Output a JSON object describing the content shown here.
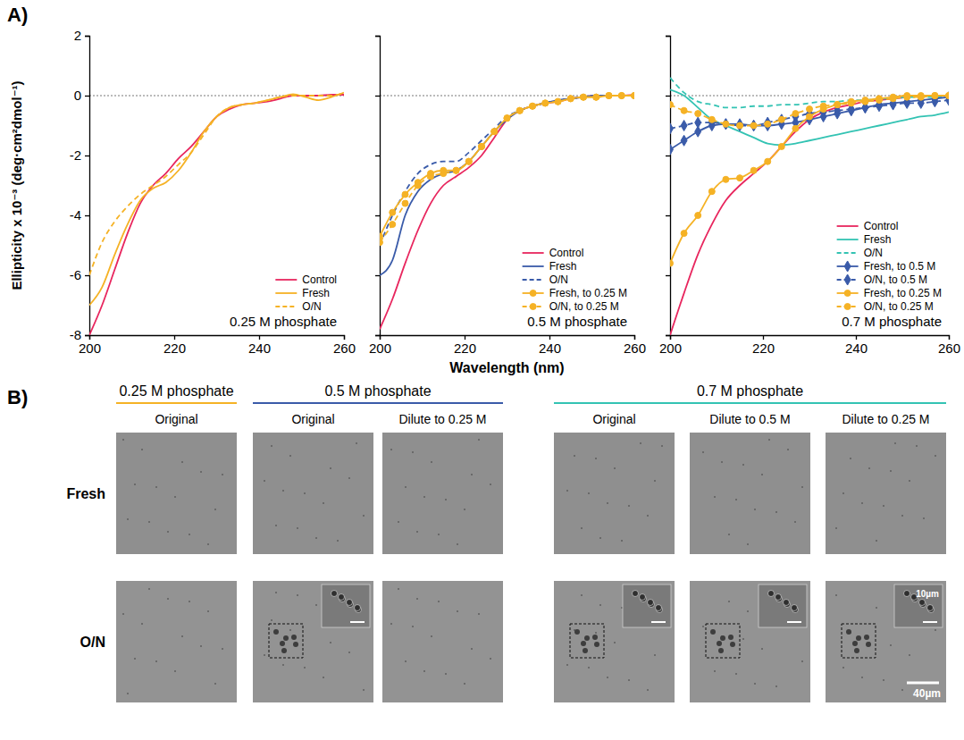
{
  "panel_a": {
    "label": "A)"
  },
  "chart_data": [
    {
      "type": "line",
      "ylabel": "Ellipticity x 10⁻³ (deg·cm²dmol⁻¹)",
      "annotation": "0.25 M phosphate",
      "x": [
        200,
        203,
        206,
        209,
        212,
        215,
        218,
        221,
        224,
        227,
        230,
        233,
        236,
        239,
        242,
        245,
        248,
        251,
        254,
        257,
        260
      ],
      "xlim": [
        200,
        260
      ],
      "xticks": [
        200,
        220,
        240,
        260
      ],
      "ylim": [
        -8,
        2
      ],
      "yticks": [
        -8,
        -6,
        -4,
        -2,
        0,
        2
      ],
      "hline": 0,
      "legend": "lower right",
      "series": [
        {
          "name": "Control",
          "color": "#e8265e",
          "line_style": "solid",
          "values": [
            -8.0,
            -7.0,
            -5.8,
            -4.6,
            -3.6,
            -3.0,
            -2.6,
            -2.1,
            -1.7,
            -1.2,
            -0.7,
            -0.45,
            -0.3,
            -0.25,
            -0.2,
            -0.1,
            0.0,
            0.0,
            0.0,
            0.03,
            0.03
          ]
        },
        {
          "name": "Fresh",
          "color": "#f5b225",
          "line_style": "solid",
          "values": [
            -7.0,
            -6.4,
            -5.3,
            -4.3,
            -3.5,
            -3.1,
            -2.9,
            -2.5,
            -1.9,
            -1.2,
            -0.7,
            -0.4,
            -0.3,
            -0.25,
            -0.15,
            -0.05,
            0.05,
            -0.05,
            -0.15,
            -0.05,
            0.1
          ]
        },
        {
          "name": "O/N",
          "color": "#f5b225",
          "line_style": "dashed",
          "values": [
            -6.0,
            -4.9,
            -4.2,
            -3.7,
            -3.3,
            -3.0,
            -2.7,
            -2.3,
            -1.9,
            -1.3,
            -0.7,
            -0.4,
            -0.3,
            -0.25,
            -0.15,
            -0.05,
            0.0,
            0.0,
            0.0,
            0.0,
            0.1
          ]
        }
      ]
    },
    {
      "type": "line",
      "xlabel": "Wavelength (nm)",
      "annotation": "0.5 M phosphate",
      "x": [
        200,
        203,
        206,
        209,
        212,
        215,
        218,
        221,
        224,
        227,
        230,
        233,
        236,
        239,
        242,
        245,
        248,
        251,
        254,
        257,
        260
      ],
      "xlim": [
        200,
        260
      ],
      "xticks": [
        200,
        220,
        240,
        260
      ],
      "ylim": [
        -8,
        2
      ],
      "yticks": [
        -8,
        -6,
        -4,
        -2,
        0,
        2
      ],
      "tick_labels": "x",
      "hline": 0,
      "legend": "lower right",
      "series": [
        {
          "name": "Control",
          "color": "#e8265e",
          "line_style": "solid",
          "values": [
            -7.8,
            -6.8,
            -5.6,
            -4.5,
            -3.6,
            -3.0,
            -2.7,
            -2.4,
            -2.0,
            -1.4,
            -0.8,
            -0.5,
            -0.35,
            -0.25,
            -0.2,
            -0.1,
            -0.05,
            0.0,
            0.0,
            0.0,
            0.03
          ]
        },
        {
          "name": "Fresh",
          "color": "#3a5ba9",
          "line_style": "solid",
          "values": [
            -6.0,
            -5.5,
            -4.0,
            -3.2,
            -2.8,
            -2.6,
            -2.5,
            -2.2,
            -1.7,
            -1.2,
            -0.8,
            -0.5,
            -0.35,
            -0.25,
            -0.15,
            -0.1,
            -0.05,
            0.0,
            0.0,
            0.0,
            0.0
          ]
        },
        {
          "name": "O/N",
          "color": "#3a5ba9",
          "line_style": "dashed",
          "values": [
            -5.0,
            -4.0,
            -3.2,
            -2.6,
            -2.3,
            -2.2,
            -2.2,
            -1.9,
            -1.5,
            -1.1,
            -0.7,
            -0.5,
            -0.35,
            -0.25,
            -0.15,
            -0.1,
            -0.05,
            0.0,
            0.0,
            0.0,
            0.0
          ]
        },
        {
          "name": "Fresh, to 0.25 M",
          "color": "#f5b225",
          "line_style": "solid",
          "marker": "circle",
          "values": [
            -4.7,
            -3.9,
            -3.3,
            -2.9,
            -2.6,
            -2.5,
            -2.5,
            -2.2,
            -1.7,
            -1.2,
            -0.75,
            -0.5,
            -0.35,
            -0.25,
            -0.2,
            -0.1,
            -0.05,
            -0.05,
            0.0,
            0.0,
            0.0
          ]
        },
        {
          "name": "O/N, to 0.25 M",
          "color": "#f5b225",
          "line_style": "dashed",
          "marker": "circle",
          "values": [
            -4.9,
            -4.3,
            -3.6,
            -3.0,
            -2.7,
            -2.6,
            -2.5,
            -2.2,
            -1.7,
            -1.2,
            -0.75,
            -0.5,
            -0.35,
            -0.25,
            -0.2,
            -0.1,
            -0.05,
            -0.05,
            0.0,
            0.0,
            0.0
          ]
        }
      ]
    },
    {
      "type": "line",
      "annotation": "0.7 M phosphate",
      "x": [
        200,
        203,
        206,
        209,
        212,
        215,
        218,
        221,
        224,
        227,
        230,
        233,
        236,
        239,
        242,
        245,
        248,
        251,
        254,
        257,
        260
      ],
      "xlim": [
        200,
        260
      ],
      "xticks": [
        200,
        220,
        240,
        260
      ],
      "ylim": [
        -8,
        2
      ],
      "yticks": [
        -8,
        -6,
        -4,
        -2,
        0,
        2
      ],
      "tick_labels": "x",
      "hline": 0,
      "legend": "lower right",
      "series": [
        {
          "name": "Control",
          "color": "#e8265e",
          "line_style": "solid",
          "values": [
            -8.0,
            -6.6,
            -5.3,
            -4.3,
            -3.5,
            -3.0,
            -2.6,
            -2.2,
            -1.7,
            -1.2,
            -0.8,
            -0.55,
            -0.4,
            -0.3,
            -0.2,
            -0.15,
            -0.1,
            -0.05,
            0.0,
            0.0,
            0.0
          ]
        },
        {
          "name": "Fresh",
          "color": "#33c3b3",
          "line_style": "solid",
          "values": [
            0.2,
            0.0,
            -0.4,
            -0.8,
            -1.0,
            -1.2,
            -1.4,
            -1.6,
            -1.65,
            -1.6,
            -1.5,
            -1.4,
            -1.3,
            -1.2,
            -1.1,
            -1.0,
            -0.9,
            -0.8,
            -0.7,
            -0.65,
            -0.55
          ]
        },
        {
          "name": "O/N",
          "color": "#33c3b3",
          "line_style": "dashed",
          "values": [
            0.6,
            0.1,
            -0.2,
            -0.3,
            -0.4,
            -0.4,
            -0.35,
            -0.35,
            -0.3,
            -0.3,
            -0.25,
            -0.2,
            -0.2,
            -0.15,
            -0.15,
            -0.1,
            -0.1,
            -0.05,
            -0.05,
            -0.05,
            0.0
          ]
        },
        {
          "name": "Fresh, to 0.5 M",
          "color": "#3a5ba9",
          "line_style": "solid",
          "marker": "diamond",
          "values": [
            -1.8,
            -1.5,
            -1.2,
            -1.0,
            -0.95,
            -0.95,
            -1.0,
            -1.0,
            -0.95,
            -0.9,
            -0.8,
            -0.7,
            -0.6,
            -0.5,
            -0.4,
            -0.3,
            -0.25,
            -0.2,
            -0.15,
            -0.1,
            -0.05
          ]
        },
        {
          "name": "O/N, to 0.5 M",
          "color": "#3a5ba9",
          "line_style": "dashed",
          "marker": "diamond",
          "values": [
            -1.1,
            -1.0,
            -0.9,
            -0.9,
            -0.95,
            -1.0,
            -1.0,
            -0.9,
            -0.8,
            -0.7,
            -0.6,
            -0.55,
            -0.5,
            -0.45,
            -0.4,
            -0.35,
            -0.3,
            -0.25,
            -0.25,
            -0.2,
            -0.15
          ]
        },
        {
          "name": "Fresh, to 0.25 M",
          "color": "#f5b225",
          "line_style": "solid",
          "marker": "circle",
          "values": [
            -5.6,
            -4.6,
            -4.0,
            -3.2,
            -2.8,
            -2.75,
            -2.5,
            -2.2,
            -1.7,
            -1.1,
            -0.7,
            -0.45,
            -0.3,
            -0.2,
            -0.15,
            -0.1,
            -0.05,
            0.0,
            0.0,
            0.0,
            0.0
          ]
        },
        {
          "name": "O/N, to 0.25 M",
          "color": "#f5b225",
          "line_style": "dashed",
          "marker": "circle",
          "values": [
            -0.3,
            -0.5,
            -0.6,
            -0.8,
            -0.95,
            -1.0,
            -1.0,
            -0.95,
            -0.8,
            -0.6,
            -0.45,
            -0.35,
            -0.3,
            -0.25,
            -0.2,
            -0.15,
            -0.1,
            -0.05,
            -0.05,
            0.0,
            0.0
          ]
        }
      ]
    }
  ],
  "panel_b": {
    "label": "B)",
    "rows": [
      "Fresh",
      "O/N"
    ],
    "groups": [
      {
        "title": "0.25 M phosphate",
        "color": "#f5b225",
        "columns": [
          "Original"
        ]
      },
      {
        "title": "0.5 M phosphate",
        "color": "#3a5ba9",
        "columns": [
          "Original",
          "Dilute to 0.25 M"
        ]
      },
      {
        "title": "0.7 M phosphate",
        "color": "#33c3b3",
        "columns": [
          "Original",
          "Dilute to 0.5 M",
          "Dilute to 0.25 M"
        ]
      }
    ],
    "insets": [
      [
        false,
        false,
        false,
        false,
        false,
        false
      ],
      [
        false,
        true,
        false,
        true,
        true,
        true
      ]
    ],
    "scale_bars": {
      "inset": "10µm",
      "image": "40µm"
    }
  }
}
